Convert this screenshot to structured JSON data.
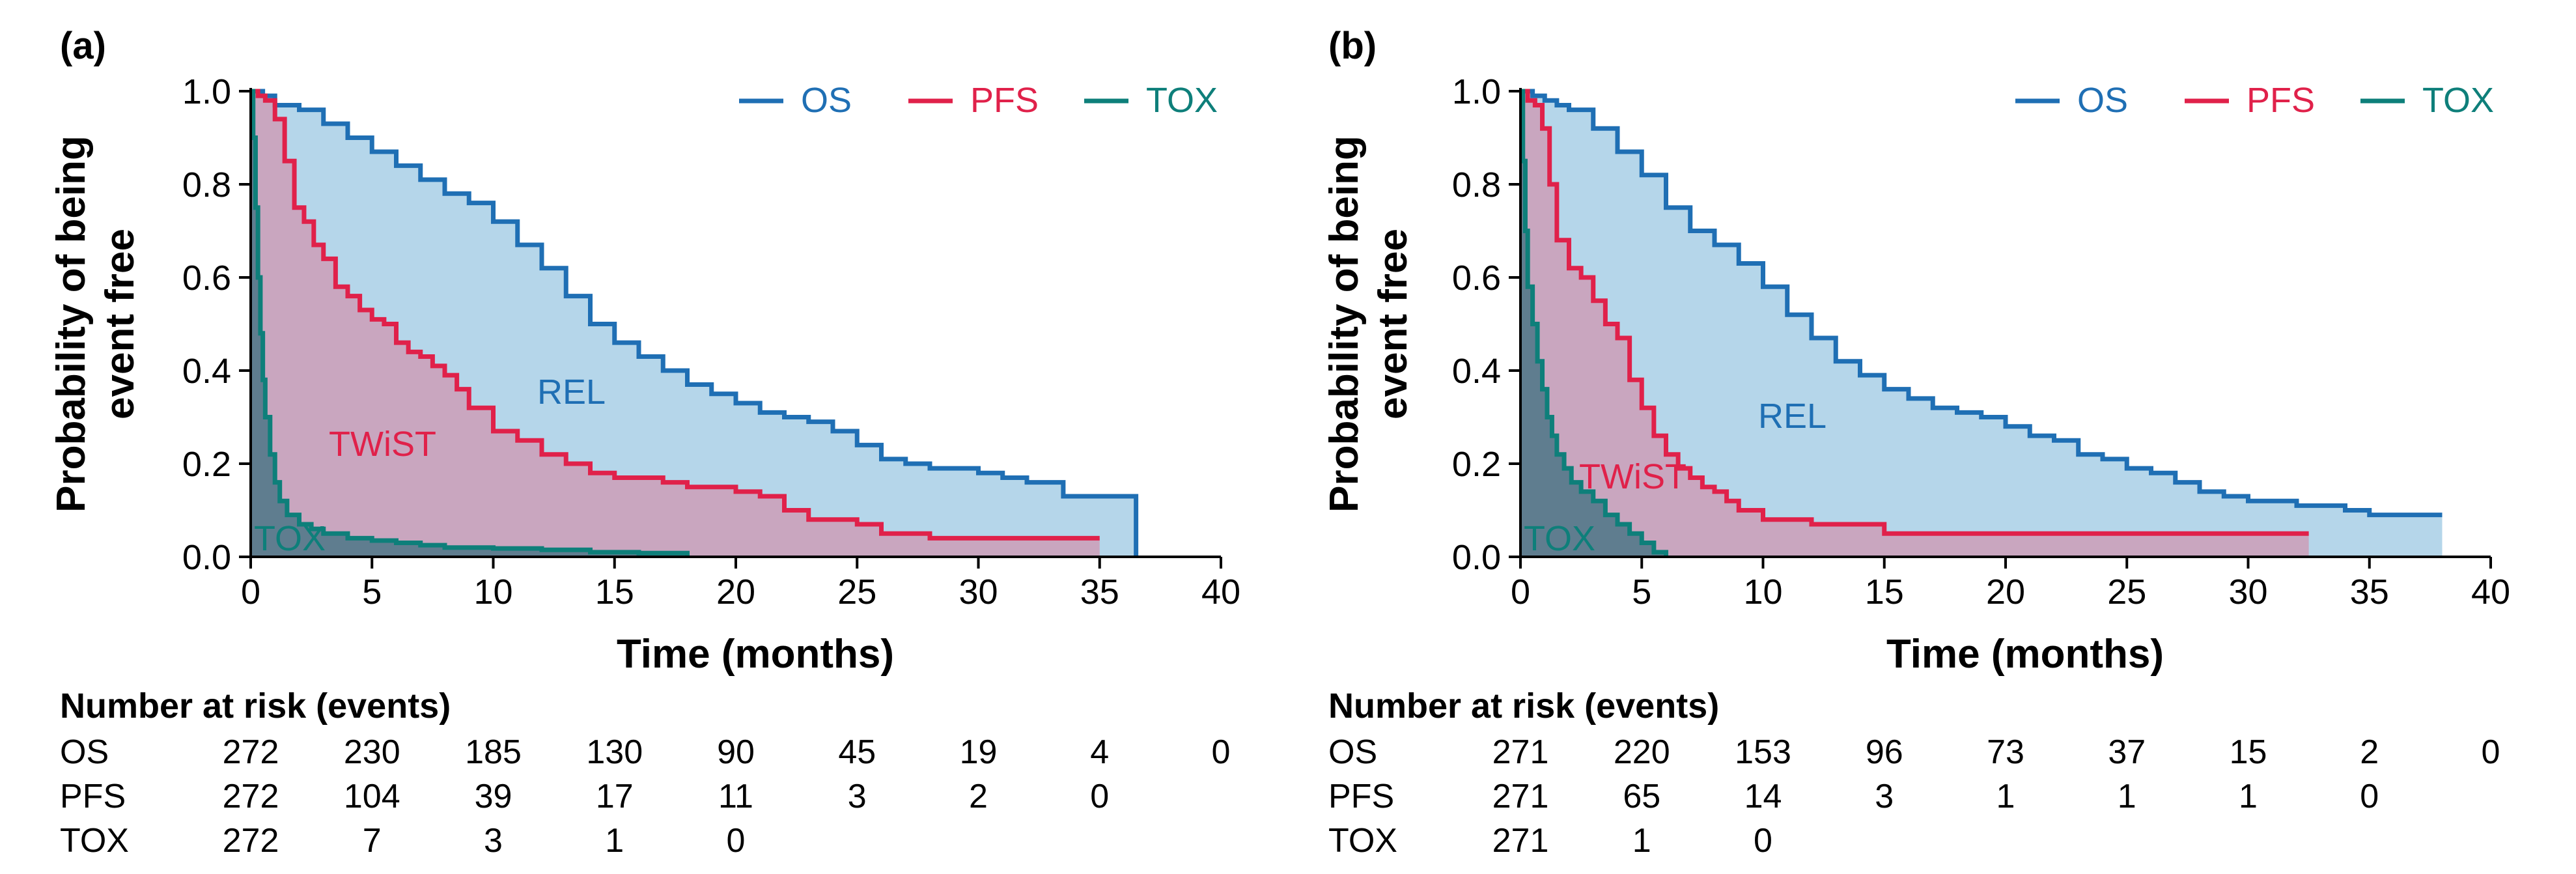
{
  "colors": {
    "os": "#1f6fb4",
    "pfs": "#e0214a",
    "tox": "#0e7f7a",
    "rel_fill": "#b5d6ea",
    "twist_fill": "#c9a6bf",
    "tox_fill": "#5f7d8f"
  },
  "chart_data": [
    {
      "type": "line",
      "panel": "(a)",
      "title": "",
      "xlabel": "Time (months)",
      "ylabel_line1": "Probability of being",
      "ylabel_line2": "event free",
      "xlim": [
        0,
        40
      ],
      "ylim": [
        0,
        1
      ],
      "xticks": [
        0,
        5,
        10,
        15,
        20,
        25,
        30,
        35,
        40
      ],
      "yticks": [
        0.0,
        0.2,
        0.4,
        0.6,
        0.8,
        1.0
      ],
      "ytick_labels": [
        "0.0",
        "0.2",
        "0.4",
        "0.6",
        "0.8",
        "1.0"
      ],
      "legend": [
        "OS",
        "PFS",
        "TOX"
      ],
      "region_labels": {
        "rel": "REL",
        "twist": "TWiST",
        "tox": "TOX"
      },
      "series": [
        {
          "name": "OS",
          "x": [
            0,
            0.5,
            1,
            2,
            3,
            4,
            5,
            6,
            7,
            8,
            9,
            10,
            11,
            12,
            13,
            14,
            15,
            16,
            17,
            18,
            19,
            20,
            21,
            22,
            23,
            24,
            25,
            26,
            27,
            28,
            29,
            30,
            31,
            32,
            33,
            33.5,
            34,
            35,
            36,
            36.5
          ],
          "y": [
            1.0,
            0.99,
            0.97,
            0.96,
            0.93,
            0.9,
            0.87,
            0.84,
            0.81,
            0.78,
            0.76,
            0.72,
            0.67,
            0.62,
            0.56,
            0.5,
            0.46,
            0.43,
            0.4,
            0.37,
            0.35,
            0.33,
            0.31,
            0.3,
            0.29,
            0.27,
            0.24,
            0.21,
            0.2,
            0.19,
            0.19,
            0.18,
            0.17,
            0.16,
            0.16,
            0.13,
            0.13,
            0.13,
            0.13,
            0.0
          ]
        },
        {
          "name": "PFS",
          "x": [
            0,
            0.3,
            0.6,
            1,
            1.4,
            1.8,
            2.2,
            2.6,
            3,
            3.5,
            4,
            4.5,
            5,
            5.5,
            6,
            6.5,
            7,
            7.5,
            8,
            8.5,
            9,
            10,
            11,
            12,
            13,
            14,
            15,
            16,
            17,
            18,
            19,
            20,
            21,
            22,
            23,
            24,
            25,
            26,
            27,
            28,
            30,
            32,
            35
          ],
          "y": [
            1.0,
            0.99,
            0.98,
            0.94,
            0.85,
            0.75,
            0.72,
            0.67,
            0.64,
            0.58,
            0.56,
            0.53,
            0.51,
            0.5,
            0.46,
            0.44,
            0.43,
            0.41,
            0.39,
            0.36,
            0.32,
            0.27,
            0.25,
            0.22,
            0.2,
            0.18,
            0.17,
            0.17,
            0.16,
            0.15,
            0.15,
            0.14,
            0.13,
            0.1,
            0.08,
            0.08,
            0.07,
            0.05,
            0.05,
            0.04,
            0.04,
            0.04,
            0.04
          ]
        },
        {
          "name": "TOX",
          "x": [
            0,
            0.1,
            0.2,
            0.3,
            0.4,
            0.5,
            0.6,
            0.8,
            1,
            1.2,
            1.5,
            2,
            2.5,
            3,
            4,
            5,
            6,
            7,
            8,
            10,
            12,
            14,
            16,
            18
          ],
          "y": [
            1.0,
            0.9,
            0.75,
            0.6,
            0.48,
            0.38,
            0.3,
            0.22,
            0.16,
            0.12,
            0.09,
            0.07,
            0.06,
            0.05,
            0.04,
            0.035,
            0.03,
            0.025,
            0.02,
            0.018,
            0.015,
            0.01,
            0.008,
            0.0
          ]
        }
      ],
      "risk_table": {
        "title": "Number at risk (events)",
        "rows": [
          {
            "label": "OS",
            "values": [
              "272",
              "230",
              "185",
              "130",
              "90",
              "45",
              "19",
              "4",
              "0"
            ]
          },
          {
            "label": "PFS",
            "values": [
              "272",
              "104",
              "39",
              "17",
              "11",
              "3",
              "2",
              "0"
            ]
          },
          {
            "label": "TOX",
            "values": [
              "272",
              "7",
              "3",
              "1",
              "0"
            ]
          }
        ]
      }
    },
    {
      "type": "line",
      "panel": "(b)",
      "title": "",
      "xlabel": "Time (months)",
      "ylabel_line1": "Probability of being",
      "ylabel_line2": "event free",
      "xlim": [
        0,
        40
      ],
      "ylim": [
        0,
        1
      ],
      "xticks": [
        0,
        5,
        10,
        15,
        20,
        25,
        30,
        35,
        40
      ],
      "yticks": [
        0.0,
        0.2,
        0.4,
        0.6,
        0.8,
        1.0
      ],
      "ytick_labels": [
        "0.0",
        "0.2",
        "0.4",
        "0.6",
        "0.8",
        "1.0"
      ],
      "legend": [
        "OS",
        "PFS",
        "TOX"
      ],
      "region_labels": {
        "rel": "REL",
        "twist": "TWiST",
        "tox": "TOX"
      },
      "series": [
        {
          "name": "OS",
          "x": [
            0,
            0.5,
            1,
            1.5,
            2,
            3,
            4,
            5,
            6,
            7,
            8,
            9,
            10,
            11,
            12,
            13,
            14,
            15,
            16,
            17,
            18,
            19,
            20,
            21,
            22,
            23,
            24,
            25,
            26,
            27,
            28,
            29,
            30,
            31,
            32,
            33,
            34,
            35,
            36,
            37,
            38
          ],
          "y": [
            1.0,
            0.99,
            0.98,
            0.97,
            0.96,
            0.92,
            0.87,
            0.82,
            0.75,
            0.7,
            0.67,
            0.63,
            0.58,
            0.52,
            0.47,
            0.42,
            0.39,
            0.36,
            0.34,
            0.32,
            0.31,
            0.3,
            0.28,
            0.26,
            0.25,
            0.22,
            0.21,
            0.19,
            0.18,
            0.16,
            0.14,
            0.13,
            0.12,
            0.12,
            0.11,
            0.11,
            0.1,
            0.09,
            0.09,
            0.09,
            0.09
          ]
        },
        {
          "name": "PFS",
          "x": [
            0,
            0.3,
            0.6,
            0.9,
            1.2,
            1.5,
            2,
            2.5,
            3,
            3.5,
            4,
            4.5,
            5,
            5.5,
            6,
            6.5,
            7,
            7.5,
            8,
            8.5,
            9,
            10,
            11,
            12,
            13,
            14,
            15,
            17,
            20,
            25,
            30,
            32.5
          ],
          "y": [
            1.0,
            0.98,
            0.97,
            0.92,
            0.8,
            0.68,
            0.62,
            0.6,
            0.55,
            0.5,
            0.47,
            0.38,
            0.32,
            0.26,
            0.22,
            0.19,
            0.17,
            0.15,
            0.14,
            0.12,
            0.1,
            0.08,
            0.08,
            0.07,
            0.07,
            0.07,
            0.05,
            0.05,
            0.05,
            0.05,
            0.05,
            0.05
          ]
        },
        {
          "name": "TOX",
          "x": [
            0,
            0.1,
            0.2,
            0.3,
            0.5,
            0.7,
            0.9,
            1.1,
            1.3,
            1.5,
            1.8,
            2.1,
            2.5,
            3,
            3.5,
            4,
            4.5,
            5,
            5.5,
            6
          ],
          "y": [
            1.0,
            0.85,
            0.7,
            0.58,
            0.5,
            0.42,
            0.36,
            0.3,
            0.26,
            0.22,
            0.19,
            0.16,
            0.14,
            0.12,
            0.09,
            0.07,
            0.05,
            0.03,
            0.01,
            0.0
          ]
        }
      ],
      "risk_table": {
        "title": "Number at risk (events)",
        "rows": [
          {
            "label": "OS",
            "values": [
              "271",
              "220",
              "153",
              "96",
              "73",
              "37",
              "15",
              "2",
              "0"
            ]
          },
          {
            "label": "PFS",
            "values": [
              "271",
              "65",
              "14",
              "3",
              "1",
              "1",
              "1",
              "0"
            ]
          },
          {
            "label": "TOX",
            "values": [
              "271",
              "1",
              "0"
            ]
          }
        ]
      }
    }
  ]
}
